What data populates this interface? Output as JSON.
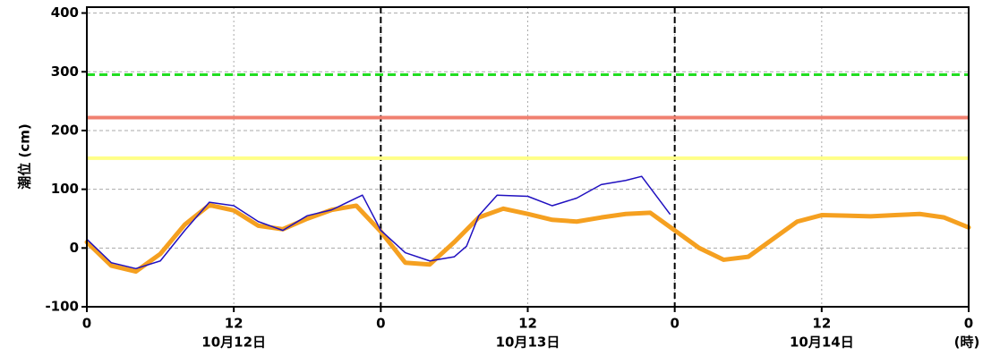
{
  "chart_data": {
    "type": "line",
    "ylabel": "潮位 (cm)",
    "xlabel": "(時)",
    "xlim": [
      0,
      72
    ],
    "ylim": [
      -100,
      410
    ],
    "xticks": [
      0,
      12,
      {
        "value": 24,
        "label": "0"
      },
      {
        "value": 36,
        "label": "12"
      },
      {
        "value": 48,
        "label": "0"
      },
      {
        "value": 60,
        "label": "12"
      },
      {
        "value": 72,
        "label": "0"
      }
    ],
    "yticks": [
      -100,
      0,
      100,
      200,
      300,
      400
    ],
    "x_group_labels": [
      {
        "value": 12,
        "label": "10月12日"
      },
      {
        "value": 36,
        "label": "10月13日"
      },
      {
        "value": 60,
        "label": "10月14日"
      }
    ],
    "day_boundaries": [
      24,
      48
    ],
    "grid": true,
    "reference_lines": [
      {
        "value": 295,
        "color": "#22dd22",
        "style": "dashed"
      },
      {
        "value": 222,
        "color": "#f08070",
        "style": "solid"
      },
      {
        "value": 153,
        "color": "#ffff88",
        "style": "solid"
      }
    ],
    "series": [
      {
        "color": "#f5a020",
        "width": 5,
        "x": [
          0,
          2,
          4,
          6,
          8,
          10,
          12,
          14,
          16,
          18,
          20,
          22,
          24,
          26,
          28,
          30,
          32,
          34,
          36,
          38,
          40,
          42,
          44,
          46,
          48,
          50,
          52,
          54,
          56,
          58,
          60,
          62,
          64,
          66,
          68,
          70,
          72
        ],
        "values": [
          10,
          -30,
          -40,
          -10,
          40,
          73,
          64,
          38,
          32,
          50,
          65,
          72,
          28,
          -25,
          -28,
          10,
          52,
          67,
          58,
          48,
          45,
          52,
          58,
          60,
          30,
          0,
          -20,
          -15,
          15,
          45,
          56,
          55,
          54,
          56,
          58,
          52,
          35
        ]
      },
      {
        "color": "#2010c0",
        "width": 1.5,
        "x": [
          0,
          2,
          4,
          6,
          8,
          10,
          12,
          14,
          16,
          18,
          20,
          22,
          22.5,
          24,
          26,
          28,
          30,
          31,
          32,
          33.5,
          36,
          38,
          40,
          42,
          44,
          45.3,
          47.6
        ],
        "values": [
          15,
          -25,
          -35,
          -22,
          30,
          78,
          72,
          45,
          30,
          55,
          65,
          85,
          90,
          30,
          -8,
          -22,
          -15,
          3,
          55,
          90,
          88,
          72,
          85,
          108,
          115,
          122,
          58
        ]
      }
    ]
  }
}
